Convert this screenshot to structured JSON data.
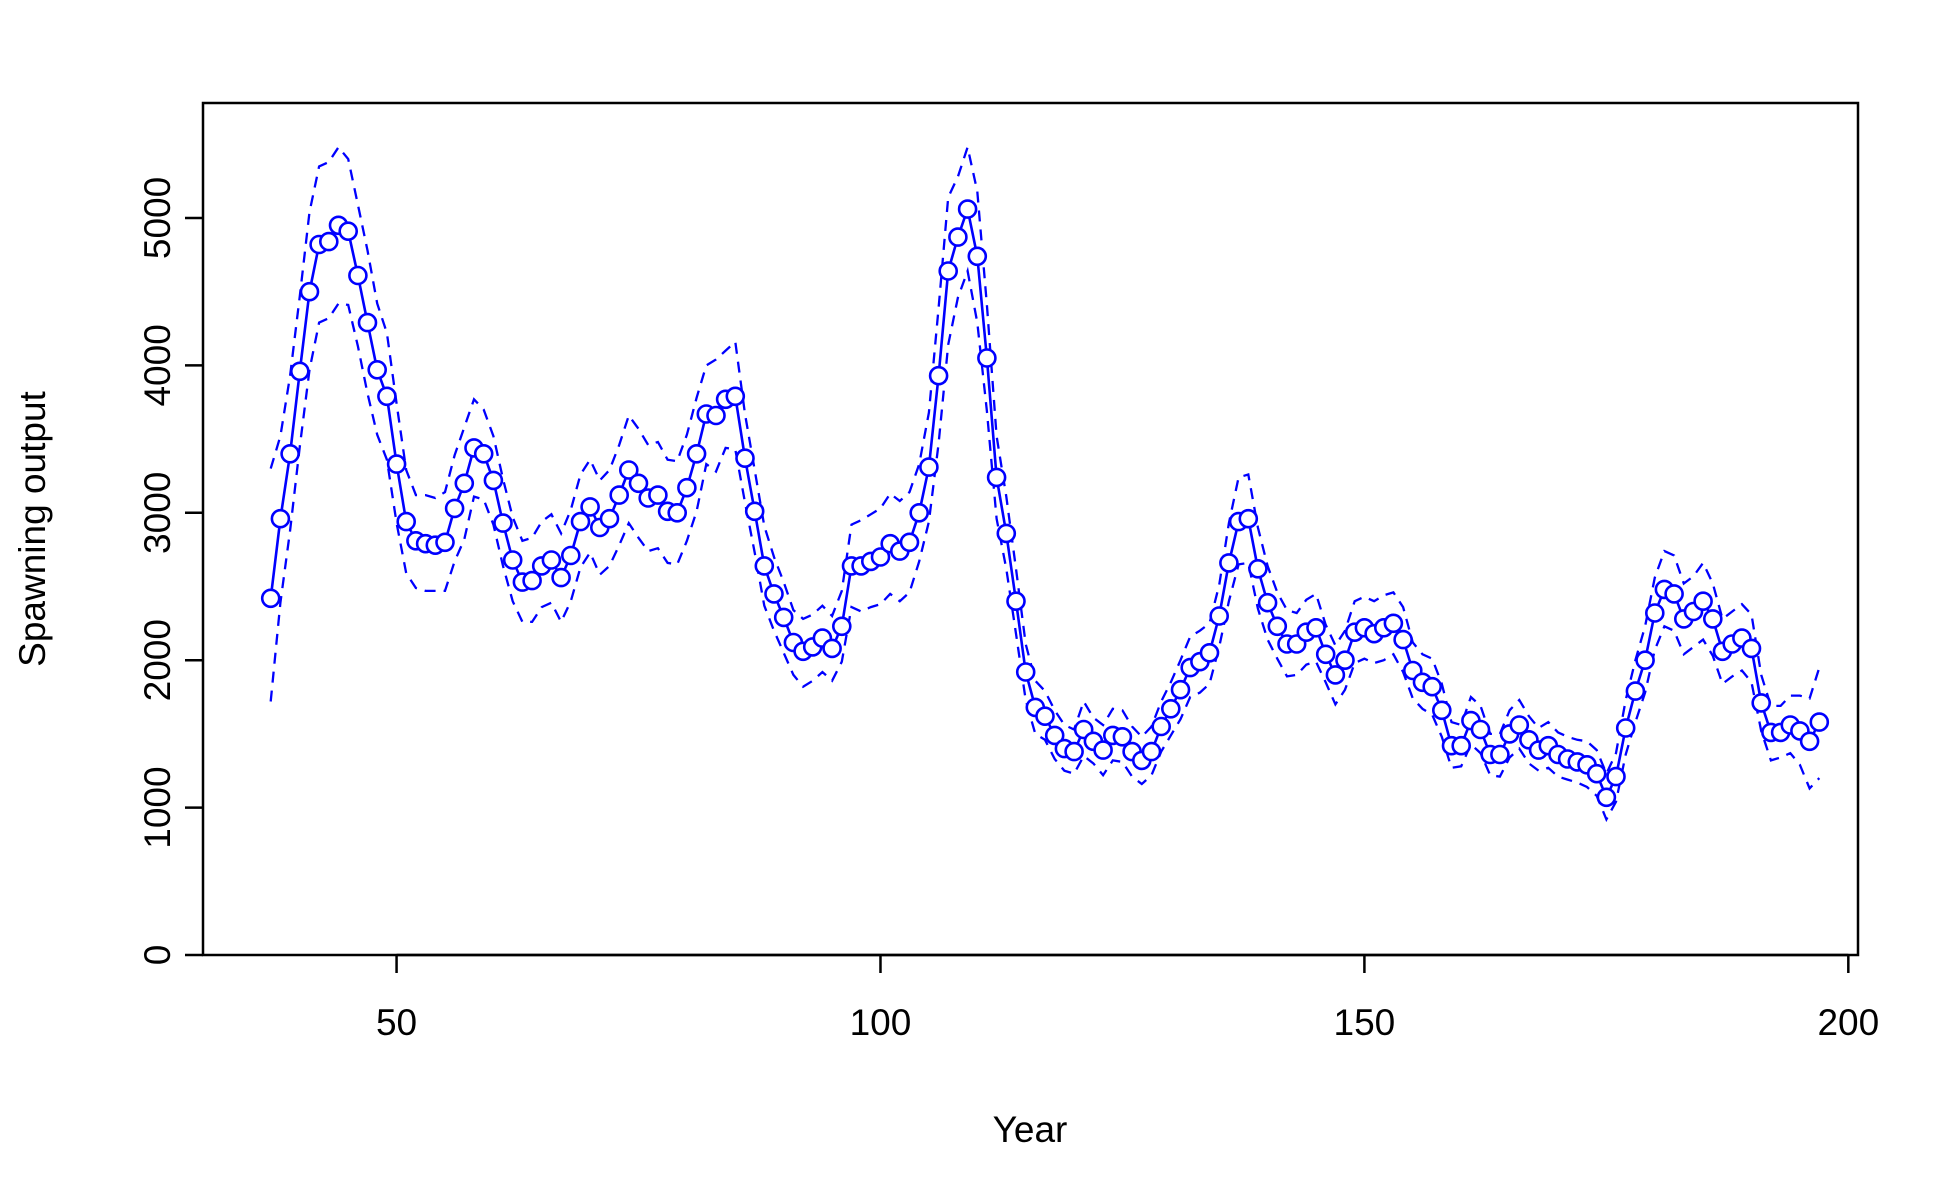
{
  "chart_data": {
    "type": "line",
    "title": "",
    "xlabel": "Year",
    "ylabel": "Spawning output",
    "xlim": [
      30,
      201
    ],
    "ylim": [
      0,
      5780
    ],
    "x_ticks": [
      50,
      100,
      150,
      200
    ],
    "y_ticks": [
      0,
      1000,
      2000,
      3000,
      4000,
      5000
    ],
    "x_tick_labels": [
      "50",
      "100",
      "150",
      "200"
    ],
    "y_tick_labels": [
      "0",
      "1000",
      "2000",
      "3000",
      "4000",
      "5000"
    ],
    "grid": false,
    "legend": "none",
    "colors": {
      "series": "#0000FF",
      "axis": "#000000"
    },
    "x": [
      37,
      38,
      39,
      40,
      41,
      42,
      43,
      44,
      45,
      46,
      47,
      48,
      49,
      50,
      51,
      52,
      53,
      54,
      55,
      56,
      57,
      58,
      59,
      60,
      61,
      62,
      63,
      64,
      65,
      66,
      67,
      68,
      69,
      70,
      71,
      72,
      73,
      74,
      75,
      76,
      77,
      78,
      79,
      80,
      81,
      82,
      83,
      84,
      85,
      86,
      87,
      88,
      89,
      90,
      91,
      92,
      93,
      94,
      95,
      96,
      97,
      98,
      99,
      100,
      101,
      102,
      103,
      104,
      105,
      106,
      107,
      108,
      109,
      110,
      111,
      112,
      113,
      114,
      115,
      116,
      117,
      118,
      119,
      120,
      121,
      122,
      123,
      124,
      125,
      126,
      127,
      128,
      129,
      130,
      131,
      132,
      133,
      134,
      135,
      136,
      137,
      138,
      139,
      140,
      141,
      142,
      143,
      144,
      145,
      146,
      147,
      148,
      149,
      150,
      151,
      152,
      153,
      154,
      155,
      156,
      157,
      158,
      159,
      160,
      161,
      162,
      163,
      164,
      165,
      166,
      167,
      168,
      169,
      170,
      171,
      172,
      173,
      174,
      175,
      176,
      177,
      178,
      179,
      180,
      181,
      182,
      183,
      184,
      185,
      186,
      187,
      188,
      189,
      190,
      191,
      192,
      193,
      194,
      195,
      196,
      197
    ],
    "series": [
      {
        "role": "estimate",
        "values": [
          2420,
          2960,
          3400,
          3960,
          4500,
          4820,
          4840,
          4950,
          4910,
          4610,
          4290,
          3970,
          3790,
          3330,
          2940,
          2810,
          2790,
          2780,
          2800,
          3030,
          3200,
          3440,
          3400,
          3220,
          2930,
          2680,
          2530,
          2540,
          2640,
          2680,
          2560,
          2710,
          2940,
          3040,
          2900,
          2960,
          3120,
          3290,
          3200,
          3100,
          3120,
          3010,
          3000,
          3170,
          3400,
          3670,
          3660,
          3770,
          3790,
          3370,
          3010,
          2640,
          2450,
          2290,
          2120,
          2060,
          2090,
          2150,
          2080,
          2230,
          2640,
          2640,
          2670,
          2700,
          2790,
          2740,
          2800,
          3000,
          3310,
          3930,
          4640,
          4870,
          5060,
          4740,
          4050,
          3240,
          2860,
          2400,
          1920,
          1680,
          1620,
          1490,
          1400,
          1380,
          1530,
          1450,
          1390,
          1490,
          1480,
          1380,
          1320,
          1380,
          1550,
          1670,
          1800,
          1950,
          1990,
          2050,
          2300,
          2660,
          2940,
          2960,
          2620,
          2390,
          2230,
          2110,
          2110,
          2190,
          2220,
          2040,
          1900,
          2000,
          2190,
          2220,
          2180,
          2220,
          2250,
          2140,
          1930,
          1850,
          1820,
          1660,
          1420,
          1420,
          1590,
          1530,
          1360,
          1360,
          1500,
          1560,
          1460,
          1390,
          1420,
          1360,
          1330,
          1310,
          1290,
          1230,
          1070,
          1210,
          1540,
          1790,
          2000,
          2320,
          2480,
          2450,
          2280,
          2330,
          2400,
          2280,
          2060,
          2110,
          2150,
          2080,
          1710,
          1510,
          1510,
          1560,
          1520,
          1450,
          1580
        ]
      },
      {
        "role": "upper-interval",
        "values": [
          3300,
          3520,
          3930,
          4470,
          5040,
          5350,
          5380,
          5480,
          5400,
          5090,
          4780,
          4420,
          4220,
          3740,
          3290,
          3120,
          3120,
          3100,
          3140,
          3390,
          3580,
          3770,
          3700,
          3520,
          3230,
          2970,
          2810,
          2830,
          2940,
          2990,
          2860,
          3020,
          3260,
          3360,
          3220,
          3290,
          3460,
          3660,
          3570,
          3460,
          3480,
          3360,
          3350,
          3530,
          3780,
          4000,
          4040,
          4100,
          4160,
          3670,
          3290,
          2910,
          2700,
          2530,
          2340,
          2280,
          2310,
          2370,
          2300,
          2470,
          2920,
          2950,
          2990,
          3030,
          3130,
          3080,
          3140,
          3330,
          3680,
          4390,
          5140,
          5280,
          5480,
          5180,
          4410,
          3520,
          3110,
          2620,
          2110,
          1860,
          1790,
          1660,
          1560,
          1530,
          1720,
          1610,
          1560,
          1670,
          1660,
          1550,
          1480,
          1550,
          1720,
          1850,
          2000,
          2160,
          2200,
          2250,
          2510,
          2930,
          3240,
          3260,
          2900,
          2640,
          2460,
          2340,
          2320,
          2410,
          2450,
          2240,
          2100,
          2200,
          2400,
          2430,
          2400,
          2440,
          2460,
          2360,
          2120,
          2040,
          2010,
          1840,
          1580,
          1560,
          1750,
          1690,
          1500,
          1500,
          1660,
          1730,
          1620,
          1540,
          1580,
          1510,
          1480,
          1460,
          1450,
          1390,
          1230,
          1370,
          1730,
          2000,
          2230,
          2560,
          2740,
          2710,
          2520,
          2570,
          2660,
          2520,
          2280,
          2330,
          2380,
          2310,
          1900,
          1690,
          1690,
          1760,
          1760,
          1740,
          1950
        ]
      },
      {
        "role": "lower-interval",
        "values": [
          1720,
          2390,
          2880,
          3450,
          3970,
          4290,
          4320,
          4420,
          4410,
          4130,
          3810,
          3530,
          3360,
          2930,
          2590,
          2490,
          2470,
          2470,
          2470,
          2670,
          2820,
          3110,
          3090,
          2920,
          2640,
          2400,
          2260,
          2260,
          2360,
          2390,
          2260,
          2400,
          2630,
          2730,
          2580,
          2640,
          2780,
          2930,
          2830,
          2740,
          2760,
          2660,
          2650,
          2810,
          3010,
          3330,
          3280,
          3440,
          3430,
          3070,
          2730,
          2370,
          2200,
          2050,
          1900,
          1820,
          1860,
          1920,
          1860,
          1990,
          2360,
          2330,
          2360,
          2380,
          2450,
          2400,
          2460,
          2670,
          2940,
          3470,
          4140,
          4460,
          4640,
          4290,
          3690,
          2960,
          2620,
          2180,
          1730,
          1500,
          1460,
          1330,
          1250,
          1230,
          1350,
          1300,
          1220,
          1320,
          1310,
          1210,
          1160,
          1220,
          1380,
          1490,
          1600,
          1750,
          1780,
          1840,
          2090,
          2400,
          2650,
          2660,
          2350,
          2140,
          2010,
          1890,
          1900,
          1970,
          1990,
          1850,
          1700,
          1800,
          1980,
          2010,
          1980,
          2000,
          2040,
          1920,
          1740,
          1670,
          1630,
          1480,
          1270,
          1280,
          1430,
          1370,
          1220,
          1210,
          1340,
          1400,
          1300,
          1250,
          1270,
          1210,
          1190,
          1170,
          1140,
          1080,
          920,
          1040,
          1360,
          1580,
          1780,
          2070,
          2230,
          2200,
          2040,
          2090,
          2140,
          2030,
          1840,
          1890,
          1930,
          1850,
          1520,
          1320,
          1340,
          1370,
          1290,
          1130,
          1200
        ]
      }
    ]
  }
}
